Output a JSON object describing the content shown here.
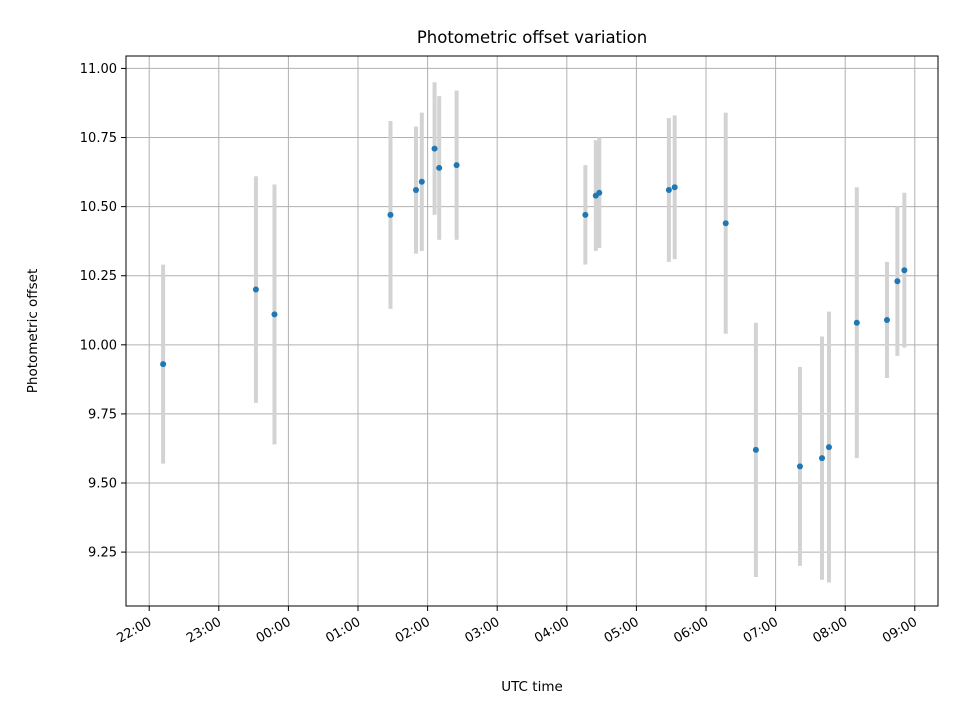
{
  "chart_data": {
    "type": "scatter",
    "title": "Photometric offset variation",
    "xlabel": "UTC time",
    "ylabel": "Photometric offset",
    "x_axis": "time",
    "xlim": [
      "2019-01-01T21:40:00",
      "2019-01-02T09:20:00"
    ],
    "ylim": [
      9.055,
      11.045
    ],
    "grid": true,
    "x_ticks": [
      {
        "value": "2019-01-01T22:00:00",
        "label": "22:00"
      },
      {
        "value": "2019-01-01T23:00:00",
        "label": "23:00"
      },
      {
        "value": "2019-01-02T00:00:00",
        "label": "00:00"
      },
      {
        "value": "2019-01-02T01:00:00",
        "label": "01:00"
      },
      {
        "value": "2019-01-02T02:00:00",
        "label": "02:00"
      },
      {
        "value": "2019-01-02T03:00:00",
        "label": "03:00"
      },
      {
        "value": "2019-01-02T04:00:00",
        "label": "04:00"
      },
      {
        "value": "2019-01-02T05:00:00",
        "label": "05:00"
      },
      {
        "value": "2019-01-02T06:00:00",
        "label": "06:00"
      },
      {
        "value": "2019-01-02T07:00:00",
        "label": "07:00"
      },
      {
        "value": "2019-01-02T08:00:00",
        "label": "08:00"
      },
      {
        "value": "2019-01-02T09:00:00",
        "label": "09:00"
      }
    ],
    "y_ticks": [
      {
        "value": 9.25,
        "label": "9.25"
      },
      {
        "value": 9.5,
        "label": "9.50"
      },
      {
        "value": 9.75,
        "label": "9.75"
      },
      {
        "value": 10.0,
        "label": "10.00"
      },
      {
        "value": 10.25,
        "label": "10.25"
      },
      {
        "value": 10.5,
        "label": "10.50"
      },
      {
        "value": 10.75,
        "label": "10.75"
      },
      {
        "value": 11.0,
        "label": "11.00"
      }
    ],
    "series": [
      {
        "marker_color": "#1f77b4",
        "errorbar_color": "#d3d3d3",
        "points": [
          {
            "x": "2019-01-01T22:12:00",
            "y": 9.93,
            "err": 0.36
          },
          {
            "x": "2019-01-01T23:32:00",
            "y": 10.2,
            "err": 0.41
          },
          {
            "x": "2019-01-01T23:48:00",
            "y": 10.11,
            "err": 0.47
          },
          {
            "x": "2019-01-02T01:28:00",
            "y": 10.47,
            "err": 0.34
          },
          {
            "x": "2019-01-02T01:50:00",
            "y": 10.56,
            "err": 0.23
          },
          {
            "x": "2019-01-02T01:55:00",
            "y": 10.59,
            "err": 0.25
          },
          {
            "x": "2019-01-02T02:06:00",
            "y": 10.71,
            "err": 0.24
          },
          {
            "x": "2019-01-02T02:10:00",
            "y": 10.64,
            "err": 0.26
          },
          {
            "x": "2019-01-02T02:25:00",
            "y": 10.65,
            "err": 0.27
          },
          {
            "x": "2019-01-02T04:16:00",
            "y": 10.47,
            "err": 0.18
          },
          {
            "x": "2019-01-02T04:25:00",
            "y": 10.54,
            "err": 0.2
          },
          {
            "x": "2019-01-02T04:28:00",
            "y": 10.55,
            "err": 0.2
          },
          {
            "x": "2019-01-02T05:28:00",
            "y": 10.56,
            "err": 0.26
          },
          {
            "x": "2019-01-02T05:33:00",
            "y": 10.57,
            "err": 0.26
          },
          {
            "x": "2019-01-02T06:17:00",
            "y": 10.44,
            "err": 0.4
          },
          {
            "x": "2019-01-02T06:43:00",
            "y": 9.62,
            "err": 0.46
          },
          {
            "x": "2019-01-02T07:21:00",
            "y": 9.56,
            "err": 0.36
          },
          {
            "x": "2019-01-02T07:40:00",
            "y": 9.59,
            "err": 0.44
          },
          {
            "x": "2019-01-02T07:46:00",
            "y": 9.63,
            "err": 0.49
          },
          {
            "x": "2019-01-02T08:10:00",
            "y": 10.08,
            "err": 0.49
          },
          {
            "x": "2019-01-02T08:36:00",
            "y": 10.09,
            "err": 0.21
          },
          {
            "x": "2019-01-02T08:45:00",
            "y": 10.23,
            "err": 0.27
          },
          {
            "x": "2019-01-02T08:51:00",
            "y": 10.27,
            "err": 0.28
          }
        ]
      }
    ]
  }
}
